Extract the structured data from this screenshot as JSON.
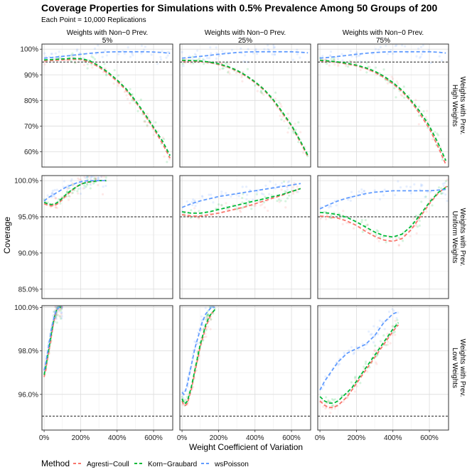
{
  "chart_data": {
    "type": "scatter",
    "title": "Coverage Properties for Simulations with 0.5% Prevalence Among 50 Groups of 200",
    "subtitle": "Each Point = 10,000 Replications",
    "xlabel": "Weight Coefficient of Variation",
    "ylabel": "Coverage",
    "reference_line": 0.95,
    "x_ticks": [
      0,
      2,
      4,
      6
    ],
    "x_tick_labels": [
      "0%",
      "200%",
      "400%",
      "600%"
    ],
    "xlim": [
      -0.12,
      7.05
    ],
    "columns": [
      {
        "label": "Weights with Non−0 Prev.",
        "label2": "5%"
      },
      {
        "label": "Weights with Non−0 Prev.",
        "label2": "25%"
      },
      {
        "label": "Weights with Non−0 Prev.",
        "label2": "75%"
      }
    ],
    "rows": [
      {
        "label": "Weights with Prev.",
        "label2": "High Weights",
        "ylim": [
          0.54,
          1.02
        ],
        "y_ticks": [
          0.6,
          0.7,
          0.8,
          0.9,
          1.0
        ],
        "y_tick_labels": [
          "60%",
          "70%",
          "80%",
          "90%",
          "100%"
        ]
      },
      {
        "label": "Weights with Prev.",
        "label2": "Uniform Weights",
        "ylim": [
          0.837,
          1.007
        ],
        "y_ticks": [
          0.85,
          0.9,
          0.95,
          1.0
        ],
        "y_tick_labels": [
          "85.0%",
          "90.0%",
          "95.0%",
          "100.0%"
        ]
      },
      {
        "label": "Weights with Prev.",
        "label2": "Low Weights",
        "ylim": [
          0.9436,
          1.0008
        ],
        "y_ticks": [
          0.96,
          0.98,
          1.0
        ],
        "y_tick_labels": [
          "96.0%",
          "98.0%",
          "100.0%"
        ]
      }
    ],
    "legend": {
      "title": "Method",
      "position": "bottom",
      "items": [
        {
          "name": "Agresti−Coull",
          "color": "#F8766D"
        },
        {
          "name": "Korn−Graubard",
          "color": "#00BA38"
        },
        {
          "name": "wsPoisson",
          "color": "#619CFF"
        }
      ]
    },
    "panels": [
      {
        "row": 0,
        "col": 0,
        "x": [
          0,
          0.5,
          1,
          1.5,
          2,
          2.5,
          3,
          3.5,
          4,
          4.5,
          5,
          5.5,
          6,
          6.5,
          6.9
        ],
        "AC": [
          0.955,
          0.956,
          0.958,
          0.96,
          0.96,
          0.95,
          0.93,
          0.905,
          0.875,
          0.84,
          0.795,
          0.745,
          0.69,
          0.63,
          0.575
        ],
        "KG": [
          0.958,
          0.96,
          0.962,
          0.964,
          0.963,
          0.955,
          0.935,
          0.91,
          0.88,
          0.845,
          0.8,
          0.75,
          0.695,
          0.64,
          0.585
        ],
        "WS": [
          0.965,
          0.968,
          0.972,
          0.976,
          0.98,
          0.984,
          0.987,
          0.989,
          0.99,
          0.99,
          0.99,
          0.99,
          0.989,
          0.987,
          0.984
        ]
      },
      {
        "row": 0,
        "col": 1,
        "x": [
          0,
          0.5,
          1,
          1.5,
          2,
          2.5,
          3,
          3.5,
          4,
          4.5,
          5,
          5.5,
          6,
          6.5,
          6.9
        ],
        "AC": [
          0.955,
          0.954,
          0.952,
          0.948,
          0.94,
          0.93,
          0.915,
          0.895,
          0.87,
          0.84,
          0.8,
          0.75,
          0.7,
          0.635,
          0.58
        ],
        "KG": [
          0.957,
          0.956,
          0.954,
          0.95,
          0.943,
          0.933,
          0.918,
          0.898,
          0.873,
          0.843,
          0.803,
          0.755,
          0.703,
          0.64,
          0.585
        ],
        "WS": [
          0.965,
          0.968,
          0.972,
          0.976,
          0.98,
          0.984,
          0.987,
          0.989,
          0.99,
          0.99,
          0.99,
          0.99,
          0.99,
          0.988,
          0.986
        ]
      },
      {
        "row": 0,
        "col": 2,
        "x": [
          0,
          0.5,
          1,
          1.5,
          2,
          2.5,
          3,
          3.5,
          4,
          4.5,
          5,
          5.5,
          6,
          6.5,
          6.9
        ],
        "AC": [
          0.955,
          0.952,
          0.948,
          0.942,
          0.935,
          0.925,
          0.91,
          0.89,
          0.865,
          0.835,
          0.795,
          0.745,
          0.69,
          0.615,
          0.55
        ],
        "KG": [
          0.957,
          0.954,
          0.95,
          0.945,
          0.938,
          0.928,
          0.914,
          0.895,
          0.87,
          0.84,
          0.8,
          0.755,
          0.7,
          0.63,
          0.565
        ],
        "WS": [
          0.965,
          0.968,
          0.972,
          0.976,
          0.98,
          0.984,
          0.987,
          0.989,
          0.99,
          0.99,
          0.99,
          0.99,
          0.99,
          0.988,
          0.985
        ]
      },
      {
        "row": 1,
        "col": 0,
        "x": [
          0,
          0.2,
          0.4,
          0.6,
          0.8,
          1,
          1.2,
          1.5,
          1.8,
          2.1,
          2.4,
          2.7,
          3,
          3.4
        ],
        "AC": [
          0.968,
          0.966,
          0.965,
          0.966,
          0.969,
          0.974,
          0.979,
          0.986,
          0.992,
          0.996,
          0.998,
          0.999,
          1.0,
          1.0
        ],
        "KG": [
          0.97,
          0.968,
          0.967,
          0.968,
          0.971,
          0.976,
          0.981,
          0.987,
          0.992,
          0.996,
          0.998,
          0.999,
          1.0,
          1.0
        ],
        "WS": [
          0.972,
          0.976,
          0.979,
          0.982,
          0.985,
          0.988,
          0.991,
          0.994,
          0.997,
          0.999,
          1.0,
          1.0,
          1.0,
          1.0
        ]
      },
      {
        "row": 1,
        "col": 1,
        "x": [
          0,
          0.5,
          1,
          1.5,
          2,
          2.5,
          3,
          3.5,
          4,
          4.5,
          5,
          5.5,
          6,
          6.5
        ],
        "AC": [
          0.953,
          0.951,
          0.951,
          0.953,
          0.955,
          0.958,
          0.961,
          0.964,
          0.968,
          0.972,
          0.976,
          0.98,
          0.985,
          0.989
        ],
        "KG": [
          0.957,
          0.955,
          0.955,
          0.957,
          0.96,
          0.963,
          0.966,
          0.969,
          0.972,
          0.975,
          0.978,
          0.981,
          0.985,
          0.989
        ],
        "WS": [
          0.963,
          0.968,
          0.972,
          0.975,
          0.978,
          0.98,
          0.982,
          0.984,
          0.986,
          0.988,
          0.99,
          0.992,
          0.994,
          0.996
        ]
      },
      {
        "row": 1,
        "col": 2,
        "x": [
          0,
          0.5,
          1,
          1.5,
          2,
          2.5,
          3,
          3.5,
          4,
          4.5,
          5,
          5.5,
          6,
          6.5,
          7
        ],
        "AC": [
          0.951,
          0.95,
          0.948,
          0.944,
          0.938,
          0.93,
          0.923,
          0.918,
          0.916,
          0.92,
          0.932,
          0.95,
          0.968,
          0.983,
          0.993
        ],
        "KG": [
          0.956,
          0.955,
          0.953,
          0.949,
          0.943,
          0.936,
          0.929,
          0.924,
          0.922,
          0.926,
          0.937,
          0.953,
          0.97,
          0.984,
          0.992
        ],
        "WS": [
          0.961,
          0.967,
          0.972,
          0.976,
          0.979,
          0.982,
          0.984,
          0.985,
          0.986,
          0.986,
          0.986,
          0.986,
          0.986,
          0.987,
          0.988
        ]
      },
      {
        "row": 2,
        "col": 0,
        "x": [
          0,
          0.1,
          0.2,
          0.3,
          0.4,
          0.5,
          0.6,
          0.7,
          0.8,
          0.9,
          1.0
        ],
        "AC": [
          0.968,
          0.972,
          0.977,
          0.982,
          0.987,
          0.992,
          0.996,
          0.999,
          1.0,
          1.0,
          1.0
        ],
        "KG": [
          0.969,
          0.973,
          0.978,
          0.983,
          0.988,
          0.993,
          0.997,
          0.999,
          1.0,
          1.0,
          1.0
        ],
        "WS": [
          0.971,
          0.975,
          0.98,
          0.985,
          0.99,
          0.994,
          0.997,
          0.999,
          1.0,
          1.0,
          1.0
        ]
      },
      {
        "row": 2,
        "col": 1,
        "x": [
          0,
          0.1,
          0.2,
          0.3,
          0.4,
          0.5,
          0.6,
          0.7,
          0.8,
          0.9,
          1.0,
          1.1,
          1.2,
          1.3,
          1.4,
          1.5,
          1.6,
          1.7,
          1.8
        ],
        "AC": [
          0.957,
          0.955,
          0.955,
          0.956,
          0.959,
          0.962,
          0.966,
          0.97,
          0.974,
          0.978,
          0.982,
          0.985,
          0.988,
          0.991,
          0.993,
          0.995,
          0.997,
          0.998,
          0.999
        ],
        "KG": [
          0.958,
          0.956,
          0.956,
          0.957,
          0.96,
          0.963,
          0.967,
          0.971,
          0.975,
          0.979,
          0.983,
          0.986,
          0.989,
          0.992,
          0.994,
          0.996,
          0.997,
          0.998,
          0.999
        ],
        "WS": [
          0.961,
          0.96,
          0.962,
          0.965,
          0.969,
          0.973,
          0.977,
          0.981,
          0.984,
          0.987,
          0.99,
          0.993,
          0.995,
          0.997,
          0.998,
          0.999,
          1.0,
          1.0,
          1.0
        ]
      },
      {
        "row": 2,
        "col": 2,
        "x": [
          0,
          0.25,
          0.5,
          0.75,
          1,
          1.25,
          1.5,
          1.75,
          2,
          2.25,
          2.5,
          2.75,
          3,
          3.25,
          3.5,
          3.75,
          4,
          4.3
        ],
        "AC": [
          0.957,
          0.955,
          0.954,
          0.954,
          0.955,
          0.957,
          0.959,
          0.962,
          0.965,
          0.968,
          0.971,
          0.974,
          0.977,
          0.98,
          0.983,
          0.986,
          0.989,
          0.992
        ],
        "KG": [
          0.959,
          0.957,
          0.956,
          0.956,
          0.957,
          0.959,
          0.961,
          0.963,
          0.966,
          0.969,
          0.972,
          0.975,
          0.978,
          0.981,
          0.984,
          0.987,
          0.99,
          0.993
        ],
        "WS": [
          0.962,
          0.966,
          0.969,
          0.972,
          0.975,
          0.977,
          0.979,
          0.98,
          0.981,
          0.982,
          0.983,
          0.985,
          0.987,
          0.99,
          0.993,
          0.995,
          0.997,
          0.998
        ]
      }
    ]
  }
}
